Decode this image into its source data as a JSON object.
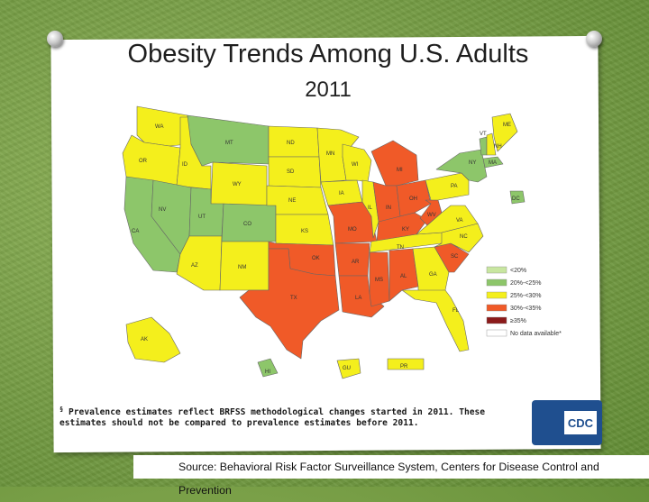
{
  "title": "Obesity Trends Among U.S. Adults",
  "subtitle": "2011",
  "colors": {
    "lt20": "#c8e6a0",
    "20to25": "#8dc66a",
    "25to30": "#f4ef1c",
    "30to35": "#f05a28",
    "ge35": "#8b1a1a",
    "nodata": "#ffffff"
  },
  "legend": [
    {
      "key": "lt20",
      "label": "<20%"
    },
    {
      "key": "20to25",
      "label": "20%-<25%"
    },
    {
      "key": "25to30",
      "label": "25%-<30%"
    },
    {
      "key": "30to35",
      "label": "30%-<35%"
    },
    {
      "key": "ge35",
      "label": "≥35%"
    },
    {
      "key": "nodata",
      "label": "No data available*"
    }
  ],
  "states": {
    "WA": "WA",
    "OR": "OR",
    "CA": "CA",
    "ID": "ID",
    "NV": "NV",
    "MT": "MT",
    "WY": "WY",
    "UT": "UT",
    "AZ": "AZ",
    "CO": "CO",
    "NM": "NM",
    "ND": "ND",
    "SD": "SD",
    "NE": "NE",
    "KS": "KS",
    "OK": "OK",
    "TX": "TX",
    "MN": "MN",
    "IA": "IA",
    "MO": "MO",
    "AR": "AR",
    "LA": "LA",
    "WI": "WI",
    "IL": "IL",
    "MS": "MS",
    "MI": "MI",
    "IN": "IN",
    "KY": "KY",
    "TN": "TN",
    "AL": "AL",
    "OH": "OH",
    "WV": "WV",
    "GA": "GA",
    "FL": "FL",
    "SC": "SC",
    "NC": "NC",
    "VA": "VA",
    "PA": "PA",
    "NY": "NY",
    "ME": "ME",
    "VT": "VT",
    "NH": "NH",
    "MA": "MA",
    "DC": "DC",
    "AK": "AK",
    "HI": "HI",
    "GU": "GU",
    "PR": "PR"
  },
  "footnote": {
    "marker": "§",
    "text": "Prevalence estimates reflect BRFSS methodological changes started in 2011. These estimates should not be compared to prevalence estimates before 2011."
  },
  "cdc_logo_text": "CDC",
  "source": "Source: Behavioral Risk Factor Surveillance System, Centers for Disease Control and Prevention"
}
